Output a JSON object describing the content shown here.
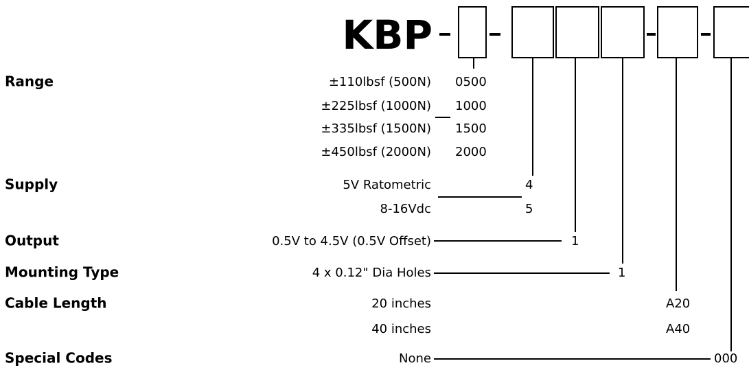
{
  "title": "KBP",
  "sections": [
    {
      "label": "Range",
      "options": [
        {
          "text": "±110lbsf (500N)",
          "code": "0500"
        },
        {
          "text": "±225lbsf (1000N)",
          "code": "1000"
        },
        {
          "text": "±335lbsf (1500N)",
          "code": "1500"
        },
        {
          "text": "±450lbsf (2000N)",
          "code": "2000"
        }
      ]
    },
    {
      "label": "Supply",
      "options": [
        {
          "text": "5V Ratometric",
          "code": "4"
        },
        {
          "text": "8-16Vdc",
          "code": "5"
        }
      ]
    },
    {
      "label": "Output",
      "options": [
        {
          "text": "0.5V to 4.5V (0.5V Offset)",
          "code": "1"
        }
      ]
    },
    {
      "label": "Mounting Type",
      "options": [
        {
          "text": "4 x 0.12\" Dia Holes",
          "code": "1"
        }
      ]
    },
    {
      "label": "Cable Length",
      "options": [
        {
          "text": "20 inches",
          "code": "A20"
        },
        {
          "text": "40 inches",
          "code": "A40"
        }
      ]
    },
    {
      "label": "Special Codes",
      "options": [
        {
          "text": "None",
          "code": "000"
        }
      ]
    }
  ]
}
